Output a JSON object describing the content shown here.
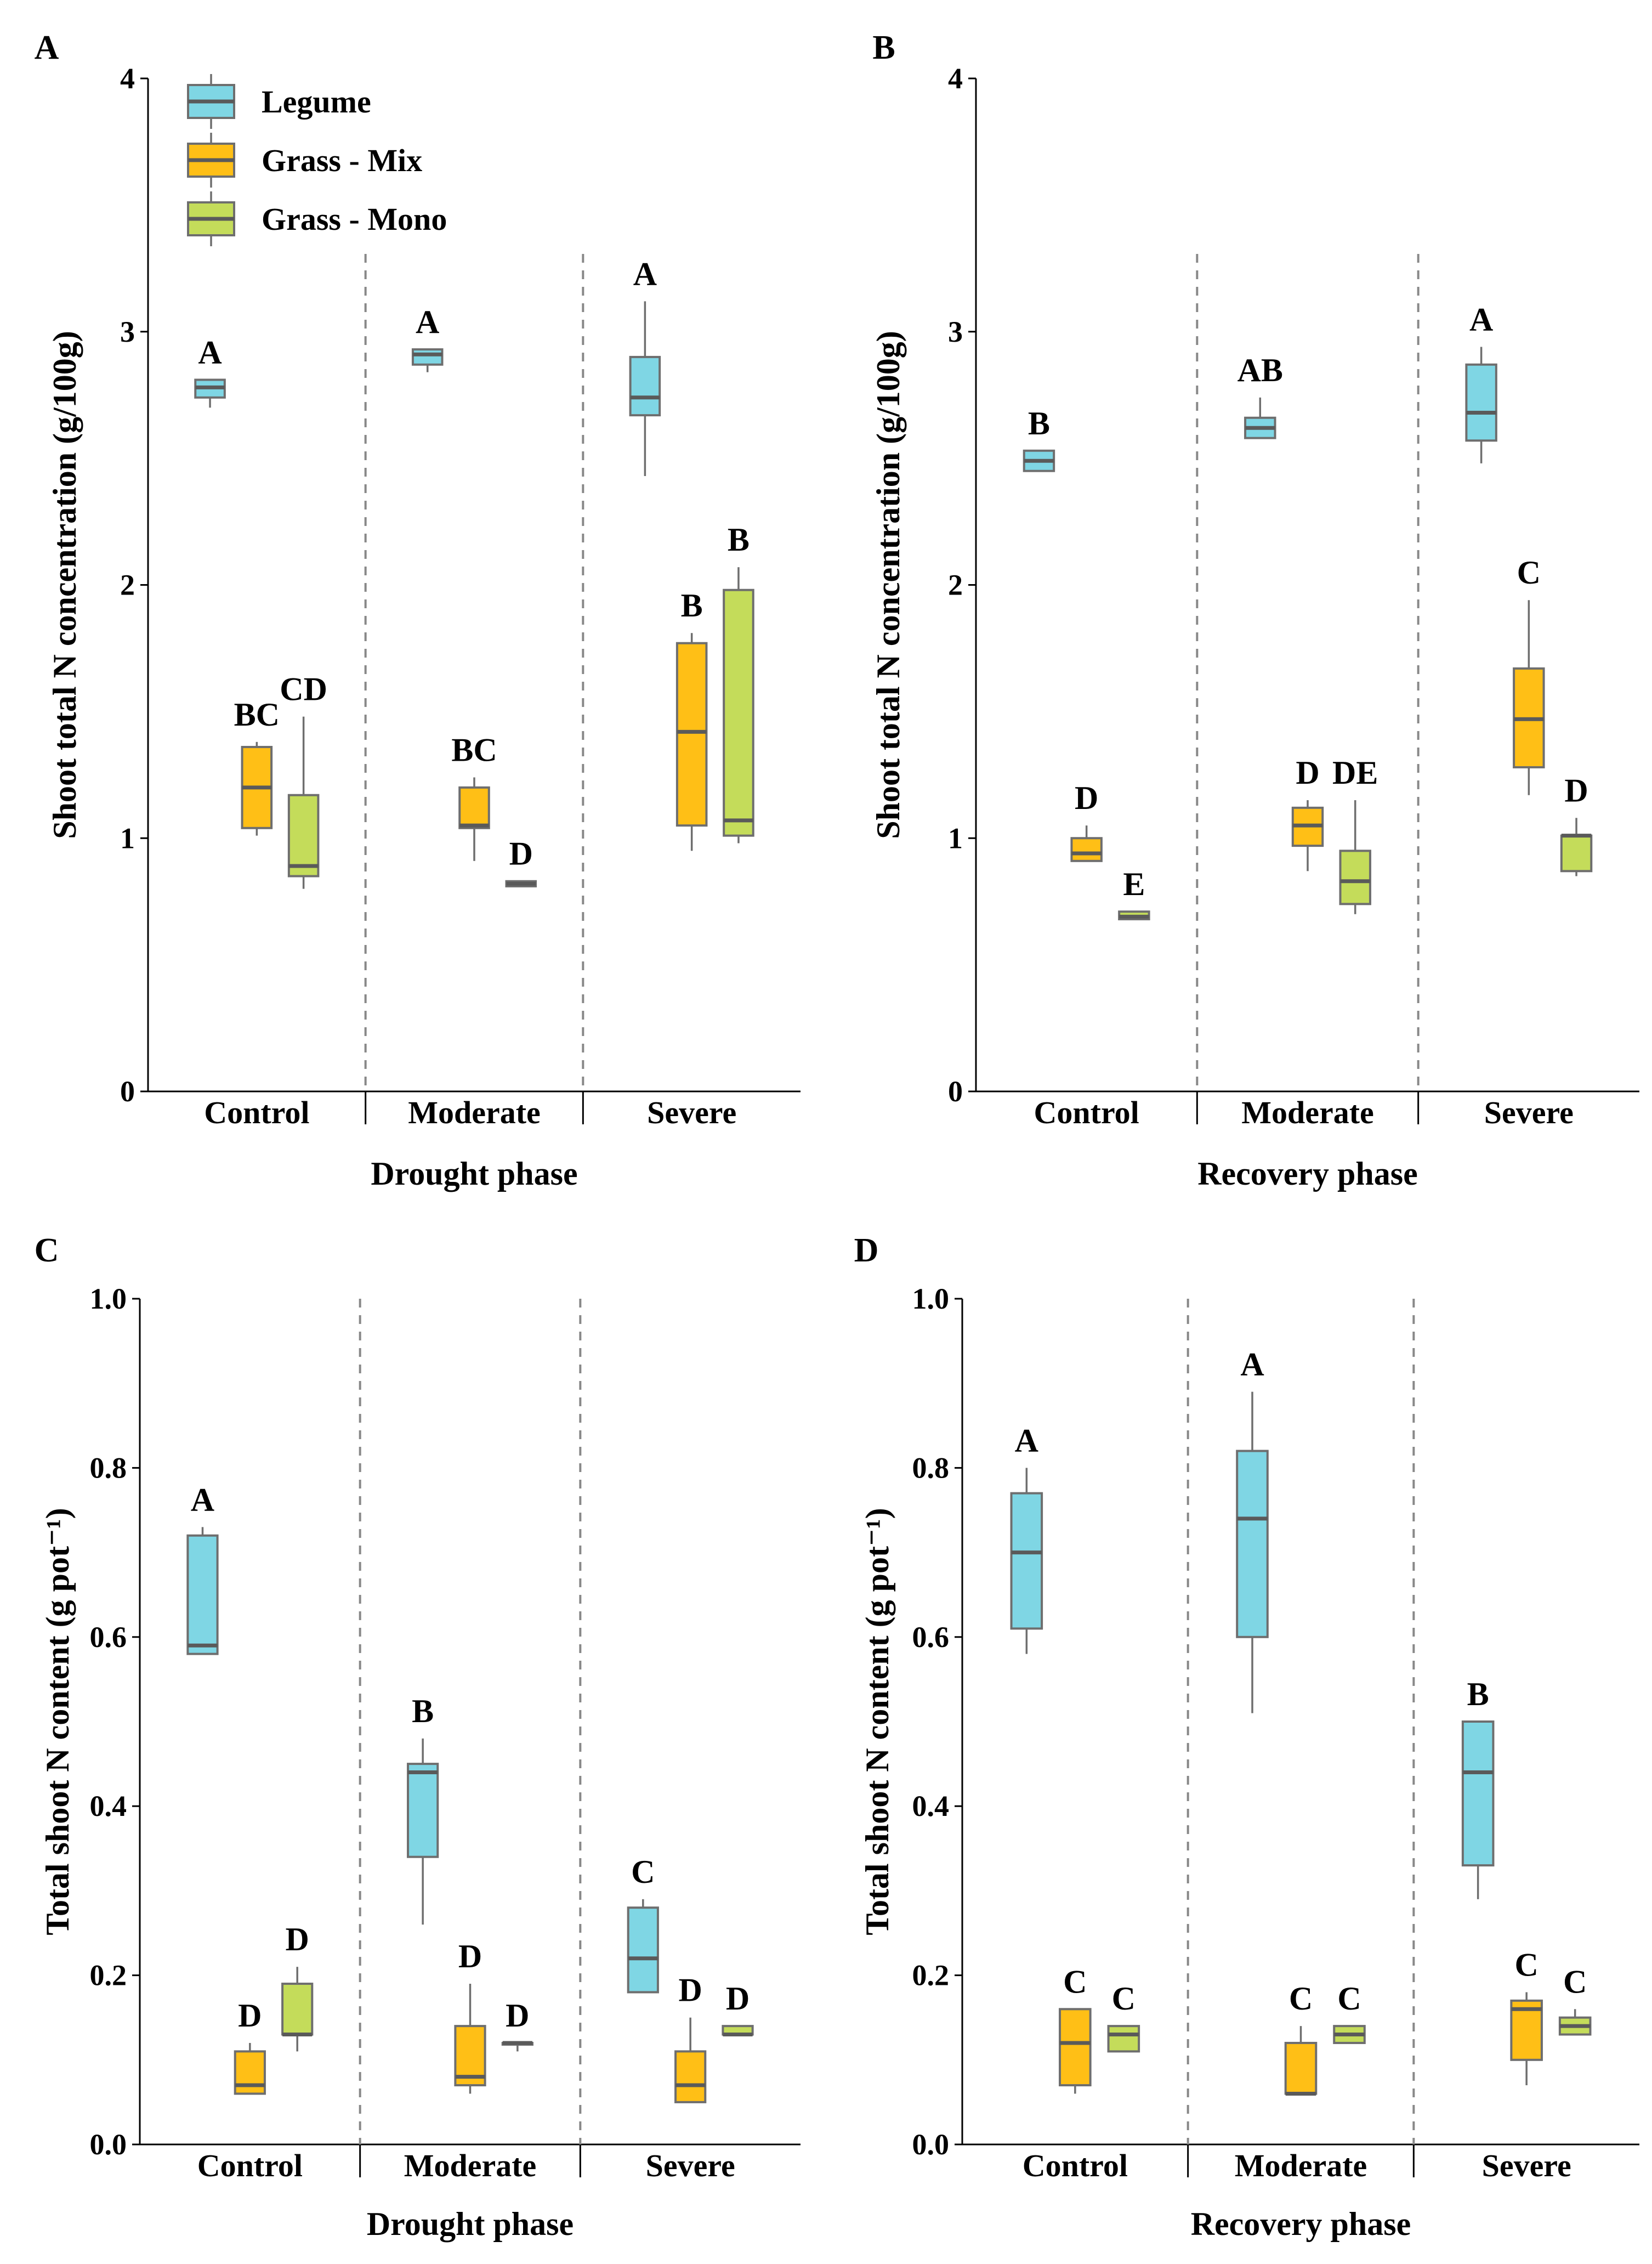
{
  "legend": {
    "entries": [
      {
        "label": "Legume",
        "color": "#7fd6e4"
      },
      {
        "label": "Grass - Mix",
        "color": "#ffbf16"
      },
      {
        "label": "Grass - Mono",
        "color": "#c4dc5a"
      }
    ]
  },
  "chart_data": [
    {
      "panel": "A",
      "type": "box",
      "ylabel": "Shoot total N concentration (g/100g)",
      "xlabel": "Drought phase",
      "categories": [
        "Control",
        "Moderate",
        "Severe"
      ],
      "ylim": [
        0,
        4
      ],
      "yticks": [
        "0",
        "1",
        "2",
        "3",
        "4"
      ],
      "legend": true,
      "series": [
        {
          "name": "Legume",
          "color": "#7fd6e4",
          "boxes": [
            {
              "category": "Control",
              "min": 2.7,
              "q1": 2.74,
              "median": 2.78,
              "q3": 2.81,
              "max": 2.81,
              "letter": "A"
            },
            {
              "category": "Moderate",
              "min": 2.84,
              "q1": 2.87,
              "median": 2.91,
              "q3": 2.93,
              "max": 2.93,
              "letter": "A"
            },
            {
              "category": "Severe",
              "min": 2.43,
              "q1": 2.67,
              "median": 2.74,
              "q3": 2.9,
              "max": 3.12,
              "letter": "A"
            }
          ]
        },
        {
          "name": "Grass - Mix",
          "color": "#ffbf16",
          "boxes": [
            {
              "category": "Control",
              "min": 1.01,
              "q1": 1.04,
              "median": 1.2,
              "q3": 1.36,
              "max": 1.38,
              "letter": "BC"
            },
            {
              "category": "Moderate",
              "min": 0.91,
              "q1": 1.04,
              "median": 1.05,
              "q3": 1.2,
              "max": 1.24,
              "letter": "BC"
            },
            {
              "category": "Severe",
              "min": 0.95,
              "q1": 1.05,
              "median": 1.42,
              "q3": 1.77,
              "max": 1.81,
              "letter": "B"
            }
          ]
        },
        {
          "name": "Grass - Mono",
          "color": "#c4dc5a",
          "boxes": [
            {
              "category": "Control",
              "min": 0.8,
              "q1": 0.85,
              "median": 0.89,
              "q3": 1.17,
              "max": 1.48,
              "letter": "CD"
            },
            {
              "category": "Moderate",
              "min": 0.81,
              "q1": 0.81,
              "median": 0.82,
              "q3": 0.83,
              "max": 0.83,
              "letter": "D"
            },
            {
              "category": "Severe",
              "min": 0.98,
              "q1": 1.01,
              "median": 1.07,
              "q3": 1.98,
              "max": 2.07,
              "letter": "B"
            }
          ]
        }
      ]
    },
    {
      "panel": "B",
      "type": "box",
      "ylabel": "Shoot total N concentration (g/100g)",
      "xlabel": "Recovery phase",
      "categories": [
        "Control",
        "Moderate",
        "Severe"
      ],
      "ylim": [
        0,
        4
      ],
      "yticks": [
        "0",
        "1",
        "2",
        "3",
        "4"
      ],
      "legend": false,
      "series": [
        {
          "name": "Legume",
          "color": "#7fd6e4",
          "boxes": [
            {
              "category": "Control",
              "min": 2.45,
              "q1": 2.45,
              "median": 2.49,
              "q3": 2.53,
              "max": 2.53,
              "letter": "B"
            },
            {
              "category": "Moderate",
              "min": 2.58,
              "q1": 2.58,
              "median": 2.62,
              "q3": 2.66,
              "max": 2.74,
              "letter": "AB"
            },
            {
              "category": "Severe",
              "min": 2.48,
              "q1": 2.57,
              "median": 2.68,
              "q3": 2.87,
              "max": 2.94,
              "letter": "A"
            }
          ]
        },
        {
          "name": "Grass - Mix",
          "color": "#ffbf16",
          "boxes": [
            {
              "category": "Control",
              "min": 0.91,
              "q1": 0.91,
              "median": 0.94,
              "q3": 1.0,
              "max": 1.05,
              "letter": "D"
            },
            {
              "category": "Moderate",
              "min": 0.87,
              "q1": 0.97,
              "median": 1.05,
              "q3": 1.12,
              "max": 1.15,
              "letter": "D"
            },
            {
              "category": "Severe",
              "min": 1.17,
              "q1": 1.28,
              "median": 1.47,
              "q3": 1.67,
              "max": 1.94,
              "letter": "C"
            }
          ]
        },
        {
          "name": "Grass - Mono",
          "color": "#c4dc5a",
          "boxes": [
            {
              "category": "Control",
              "min": 0.68,
              "q1": 0.68,
              "median": 0.69,
              "q3": 0.71,
              "max": 0.71,
              "letter": "E"
            },
            {
              "category": "Moderate",
              "min": 0.7,
              "q1": 0.74,
              "median": 0.83,
              "q3": 0.95,
              "max": 1.15,
              "letter": "DE"
            },
            {
              "category": "Severe",
              "min": 0.85,
              "q1": 0.87,
              "median": 1.01,
              "q3": 1.01,
              "max": 1.08,
              "letter": "D"
            }
          ]
        }
      ]
    },
    {
      "panel": "C",
      "type": "box",
      "ylabel": "Total shoot N content (g pot⁻¹)",
      "xlabel": "Drought phase",
      "categories": [
        "Control",
        "Moderate",
        "Severe"
      ],
      "ylim": [
        0,
        1
      ],
      "yticks": [
        "0.0",
        "0.2",
        "0.4",
        "0.6",
        "0.8",
        "1.0"
      ],
      "legend": false,
      "series": [
        {
          "name": "Legume",
          "color": "#7fd6e4",
          "boxes": [
            {
              "category": "Control",
              "min": 0.58,
              "q1": 0.58,
              "median": 0.59,
              "q3": 0.72,
              "max": 0.73,
              "letter": "A"
            },
            {
              "category": "Moderate",
              "min": 0.26,
              "q1": 0.34,
              "median": 0.44,
              "q3": 0.45,
              "max": 0.48,
              "letter": "B"
            },
            {
              "category": "Severe",
              "min": 0.18,
              "q1": 0.18,
              "median": 0.22,
              "q3": 0.28,
              "max": 0.29,
              "letter": "C"
            }
          ]
        },
        {
          "name": "Grass - Mix",
          "color": "#ffbf16",
          "boxes": [
            {
              "category": "Control",
              "min": 0.06,
              "q1": 0.06,
              "median": 0.07,
              "q3": 0.11,
              "max": 0.12,
              "letter": "D"
            },
            {
              "category": "Moderate",
              "min": 0.06,
              "q1": 0.07,
              "median": 0.08,
              "q3": 0.14,
              "max": 0.19,
              "letter": "D"
            },
            {
              "category": "Severe",
              "min": 0.05,
              "q1": 0.05,
              "median": 0.07,
              "q3": 0.11,
              "max": 0.15,
              "letter": "D"
            }
          ]
        },
        {
          "name": "Grass - Mono",
          "color": "#c4dc5a",
          "boxes": [
            {
              "category": "Control",
              "min": 0.11,
              "q1": 0.13,
              "median": 0.13,
              "q3": 0.19,
              "max": 0.21,
              "letter": "D"
            },
            {
              "category": "Moderate",
              "min": 0.11,
              "q1": 0.12,
              "median": 0.12,
              "q3": 0.12,
              "max": 0.12,
              "letter": "D"
            },
            {
              "category": "Severe",
              "min": 0.13,
              "q1": 0.13,
              "median": 0.13,
              "q3": 0.14,
              "max": 0.14,
              "letter": "D"
            }
          ]
        }
      ]
    },
    {
      "panel": "D",
      "type": "box",
      "ylabel": "Total shoot N content (g pot⁻¹)",
      "xlabel": "Recovery phase",
      "categories": [
        "Control",
        "Moderate",
        "Severe"
      ],
      "ylim": [
        0,
        1
      ],
      "yticks": [
        "0.0",
        "0.2",
        "0.4",
        "0.6",
        "0.8",
        "1.0"
      ],
      "legend": false,
      "series": [
        {
          "name": "Legume",
          "color": "#7fd6e4",
          "boxes": [
            {
              "category": "Control",
              "min": 0.58,
              "q1": 0.61,
              "median": 0.7,
              "q3": 0.77,
              "max": 0.8,
              "letter": "A"
            },
            {
              "category": "Moderate",
              "min": 0.51,
              "q1": 0.6,
              "median": 0.74,
              "q3": 0.82,
              "max": 0.89,
              "letter": "A"
            },
            {
              "category": "Severe",
              "min": 0.29,
              "q1": 0.33,
              "median": 0.44,
              "q3": 0.5,
              "max": 0.5,
              "letter": "B"
            }
          ]
        },
        {
          "name": "Grass - Mix",
          "color": "#ffbf16",
          "boxes": [
            {
              "category": "Control",
              "min": 0.06,
              "q1": 0.07,
              "median": 0.12,
              "q3": 0.16,
              "max": 0.16,
              "letter": "C"
            },
            {
              "category": "Moderate",
              "min": 0.06,
              "q1": 0.06,
              "median": 0.06,
              "q3": 0.12,
              "max": 0.14,
              "letter": "C"
            },
            {
              "category": "Severe",
              "min": 0.07,
              "q1": 0.1,
              "median": 0.16,
              "q3": 0.17,
              "max": 0.18,
              "letter": "C"
            }
          ]
        },
        {
          "name": "Grass - Mono",
          "color": "#c4dc5a",
          "boxes": [
            {
              "category": "Control",
              "min": 0.11,
              "q1": 0.11,
              "median": 0.13,
              "q3": 0.14,
              "max": 0.14,
              "letter": "C"
            },
            {
              "category": "Moderate",
              "min": 0.12,
              "q1": 0.12,
              "median": 0.13,
              "q3": 0.14,
              "max": 0.14,
              "letter": "C"
            },
            {
              "category": "Severe",
              "min": 0.13,
              "q1": 0.13,
              "median": 0.14,
              "q3": 0.15,
              "max": 0.16,
              "letter": "C"
            }
          ]
        }
      ]
    }
  ]
}
